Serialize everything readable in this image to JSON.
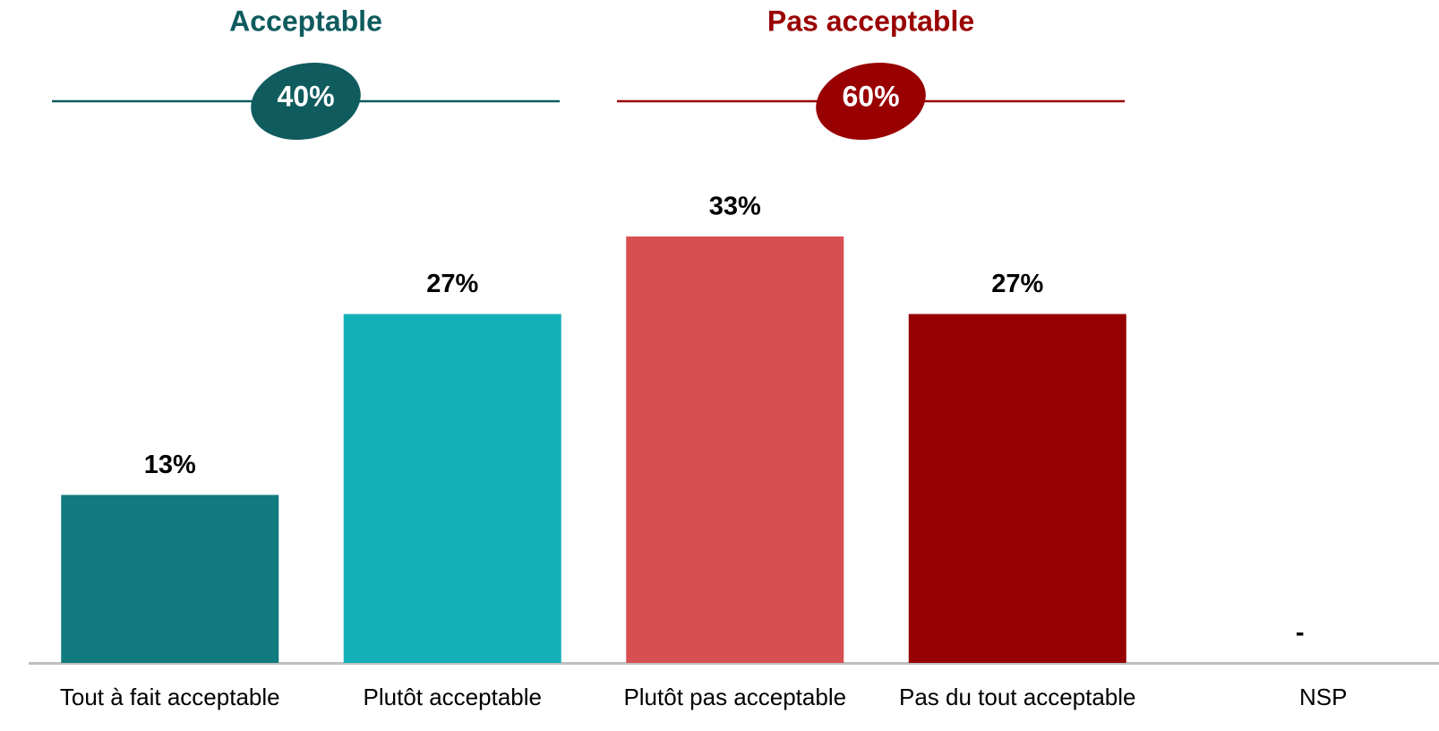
{
  "chart_data": {
    "type": "bar",
    "categories": [
      "Tout à fait acceptable",
      "Plutôt acceptable",
      "Plutôt pas acceptable",
      "Pas du tout acceptable",
      "NSP"
    ],
    "values": [
      13,
      27,
      33,
      27,
      0
    ],
    "value_labels": [
      "13%",
      "27%",
      "33%",
      "27%",
      "-"
    ],
    "colors": [
      "#107a7e",
      "#14b0b8",
      "#d84f52",
      "#960000",
      "#bfbfbf"
    ],
    "groups": [
      {
        "name": "Acceptable",
        "value": 40,
        "value_label": "40%",
        "color": "#0f5b5e"
      },
      {
        "name": "Pas acceptable",
        "value": 60,
        "value_label": "60%",
        "color": "#990000"
      }
    ]
  }
}
